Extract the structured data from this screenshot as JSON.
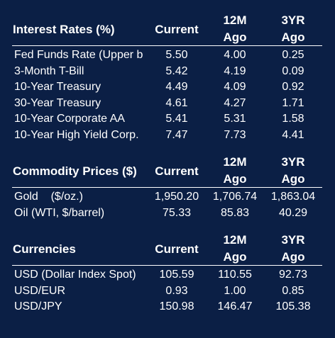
{
  "interest_rates": {
    "title": "Interest Rates (%)",
    "col_current": "Current",
    "col_12m": [
      "12M",
      "Ago"
    ],
    "col_3yr": [
      "3YR",
      "Ago"
    ],
    "rows": [
      {
        "label": "Fed Funds Rate (Upper b",
        "current": "5.50",
        "m12": "4.00",
        "y3": "0.25"
      },
      {
        "label": "3-Month T-Bill",
        "current": "5.42",
        "m12": "4.19",
        "y3": "0.09"
      },
      {
        "label": "10-Year Treasury",
        "current": "4.49",
        "m12": "4.09",
        "y3": "0.92"
      },
      {
        "label": "30-Year Treasury",
        "current": "4.61",
        "m12": "4.27",
        "y3": "1.71"
      },
      {
        "label": "10-Year Corporate AA",
        "current": "5.41",
        "m12": "5.31",
        "y3": "1.58"
      },
      {
        "label": "10-Year High Yield Corp.",
        "current": "7.47",
        "m12": "7.73",
        "y3": "4.41"
      }
    ]
  },
  "commodity_prices": {
    "title": "Commodity Prices ($)",
    "col_current": "Current",
    "col_12m": [
      "12M",
      "Ago"
    ],
    "col_3yr": [
      "3YR",
      "Ago"
    ],
    "rows": [
      {
        "label": "Gold    ($/oz.)",
        "current": "1,950.20",
        "m12": "1,706.74",
        "y3": "1,863.04"
      },
      {
        "label": "Oil (WTI, $/barrel)",
        "current": "75.33",
        "m12": "85.83",
        "y3": "40.29"
      }
    ]
  },
  "currencies": {
    "title": "Currencies",
    "col_current": "Current",
    "col_12m": [
      "12M",
      "Ago"
    ],
    "col_3yr": [
      "3YR",
      "Ago"
    ],
    "rows": [
      {
        "label": "USD (Dollar Index Spot)",
        "current": "105.59",
        "m12": "110.55",
        "y3": "92.73"
      },
      {
        "label": "USD/EUR",
        "current": "0.93",
        "m12": "1.00",
        "y3": "0.85"
      },
      {
        "label": "USD/JPY",
        "current": "150.98",
        "m12": "146.47",
        "y3": "105.38"
      }
    ]
  },
  "colors": {
    "background": "#0b1f45",
    "text": "#ffffff"
  }
}
